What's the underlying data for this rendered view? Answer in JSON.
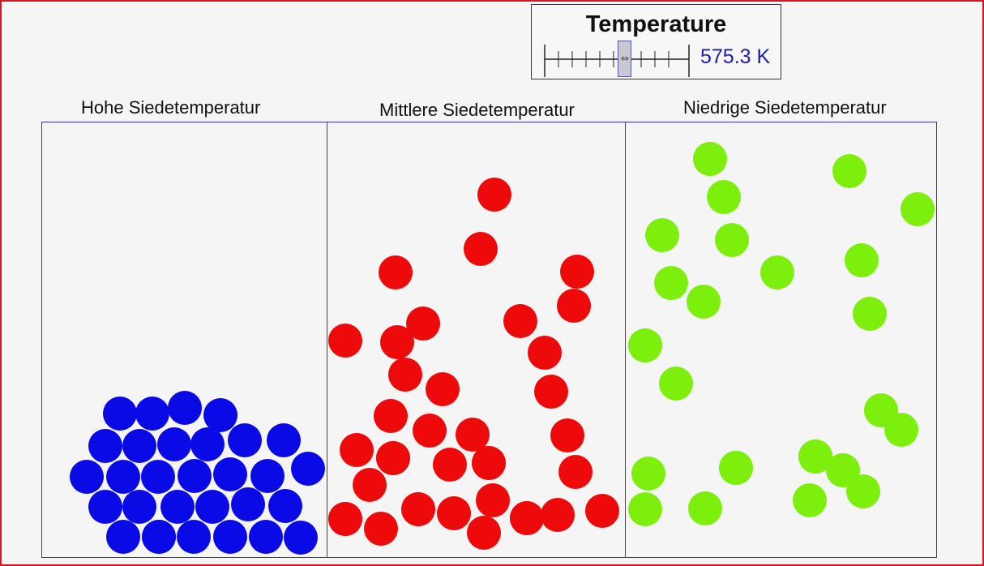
{
  "temperature_control": {
    "title": "Temperature",
    "value_text": "575.3 K",
    "slider_level_fraction": 0.55
  },
  "containers": [
    {
      "label": "Hohe Siedetemperatur",
      "particle_color": "#0a0ae6",
      "particle_count": 30
    },
    {
      "label": "Mittlere Siedetemperatur",
      "particle_color": "#ee0a0a",
      "particle_count": 37
    },
    {
      "label": "Niedrige Siedetemperatur",
      "particle_color": "#7cf00c",
      "particle_count": 28
    }
  ],
  "colors": {
    "frame_border": "#d4161e",
    "box_border": "#3636b0",
    "value_text": "#1c1cb4"
  }
}
